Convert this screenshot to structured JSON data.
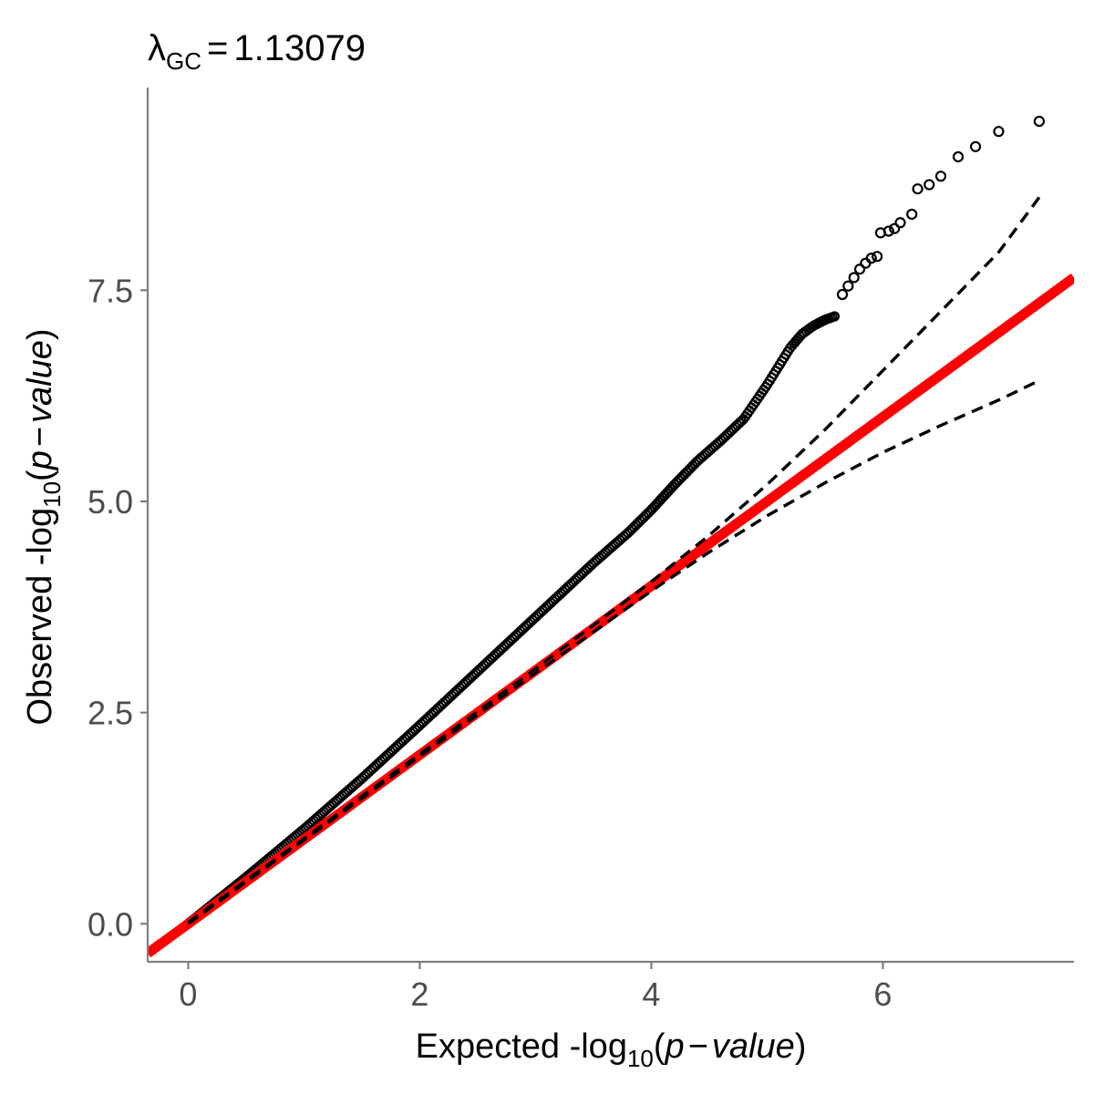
{
  "chart_data": {
    "type": "scatter",
    "title": {
      "symbol": "λ",
      "subscript": "GC",
      "equals": "=",
      "value": "1.13079"
    },
    "xlabel": {
      "prefix": "Expected -log",
      "subscript": "10",
      "open": "(",
      "p": "p",
      "minus": "−",
      "value": "value",
      "close": ")"
    },
    "ylabel": {
      "prefix": "Observed -log",
      "subscript": "10",
      "open": "(",
      "p": "p",
      "minus": "−",
      "value": "value",
      "close": ")"
    },
    "xlim": [
      -0.35,
      7.65
    ],
    "ylim": [
      -0.45,
      9.9
    ],
    "x_ticks": [
      0,
      2,
      4,
      6
    ],
    "x_tick_labels": [
      "0",
      "2",
      "4",
      "6"
    ],
    "y_ticks": [
      0,
      2.5,
      5,
      7.5
    ],
    "y_tick_labels": [
      "0.0",
      "2.5",
      "5.0",
      "7.5"
    ],
    "grid": false,
    "reference_line": {
      "slope": 1,
      "intercept": 0,
      "color": "#ff0000"
    },
    "confidence_band_x": [
      0,
      1,
      2,
      3,
      4,
      4.5,
      5,
      5.5,
      6,
      6.5,
      7,
      7.35
    ],
    "confidence_band_upper": [
      0.02,
      1.01,
      2.01,
      3.02,
      4.05,
      4.6,
      5.2,
      5.85,
      6.55,
      7.25,
      7.95,
      8.6
    ],
    "confidence_band_lower": [
      0.0,
      0.99,
      1.98,
      2.97,
      3.94,
      4.4,
      4.83,
      5.22,
      5.58,
      5.9,
      6.2,
      6.43
    ],
    "points": {
      "curve_x": [
        0,
        0.5,
        1.0,
        1.5,
        2.0,
        2.5,
        3.0,
        3.5,
        3.8,
        4.0,
        4.2,
        4.4,
        4.6,
        4.8,
        5.0,
        5.1,
        5.2,
        5.3,
        5.4,
        5.5,
        5.6
      ],
      "curve_y": [
        0,
        0.55,
        1.12,
        1.72,
        2.35,
        2.99,
        3.63,
        4.27,
        4.63,
        4.9,
        5.2,
        5.48,
        5.72,
        5.98,
        6.38,
        6.6,
        6.82,
        6.98,
        7.08,
        7.15,
        7.2
      ],
      "extremes": [
        [
          5.65,
          7.45
        ],
        [
          5.7,
          7.55
        ],
        [
          5.75,
          7.65
        ],
        [
          5.8,
          7.75
        ],
        [
          5.85,
          7.82
        ],
        [
          5.9,
          7.88
        ],
        [
          5.95,
          7.9
        ],
        [
          5.98,
          8.18
        ],
        [
          6.05,
          8.2
        ],
        [
          6.1,
          8.23
        ],
        [
          6.15,
          8.3
        ],
        [
          6.25,
          8.4
        ],
        [
          6.3,
          8.7
        ],
        [
          6.4,
          8.75
        ],
        [
          6.5,
          8.85
        ],
        [
          6.65,
          9.08
        ],
        [
          6.8,
          9.2
        ],
        [
          7.0,
          9.38
        ],
        [
          7.35,
          9.5
        ]
      ]
    }
  }
}
